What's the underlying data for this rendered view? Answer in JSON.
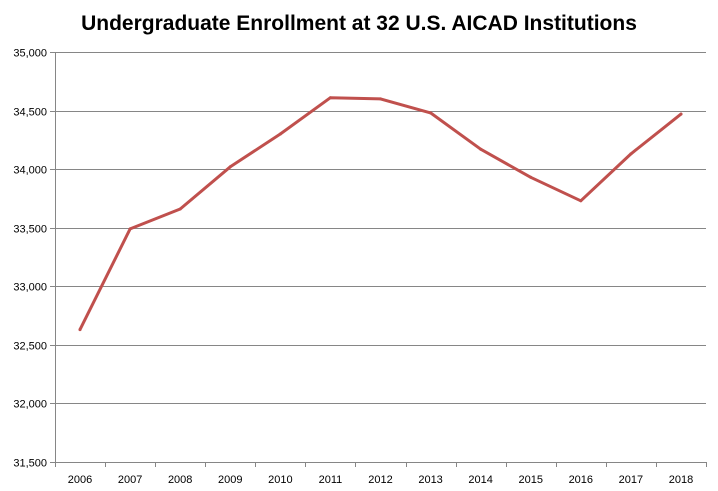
{
  "chart_data": {
    "type": "line",
    "title": "Undergraduate Enrollment at 32 U.S. AICAD Institutions",
    "xlabel": "",
    "ylabel": "",
    "categories": [
      "2006",
      "2007",
      "2008",
      "2009",
      "2010",
      "2011",
      "2012",
      "2013",
      "2014",
      "2015",
      "2016",
      "2017",
      "2018"
    ],
    "series": [
      {
        "values": [
          32630,
          33490,
          33660,
          34020,
          34300,
          34610,
          34600,
          34480,
          34170,
          33930,
          33730,
          34130,
          34470
        ],
        "color": "#c0504d"
      }
    ],
    "ylim": [
      31500,
      35000
    ],
    "yticks": [
      31500,
      32000,
      32500,
      33000,
      33500,
      34000,
      34500,
      35000
    ],
    "ytick_labels": [
      "31,500",
      "32,000",
      "32,500",
      "33,000",
      "33,500",
      "34,000",
      "34,500",
      "35,000"
    ],
    "grid": true,
    "legend": "none"
  }
}
